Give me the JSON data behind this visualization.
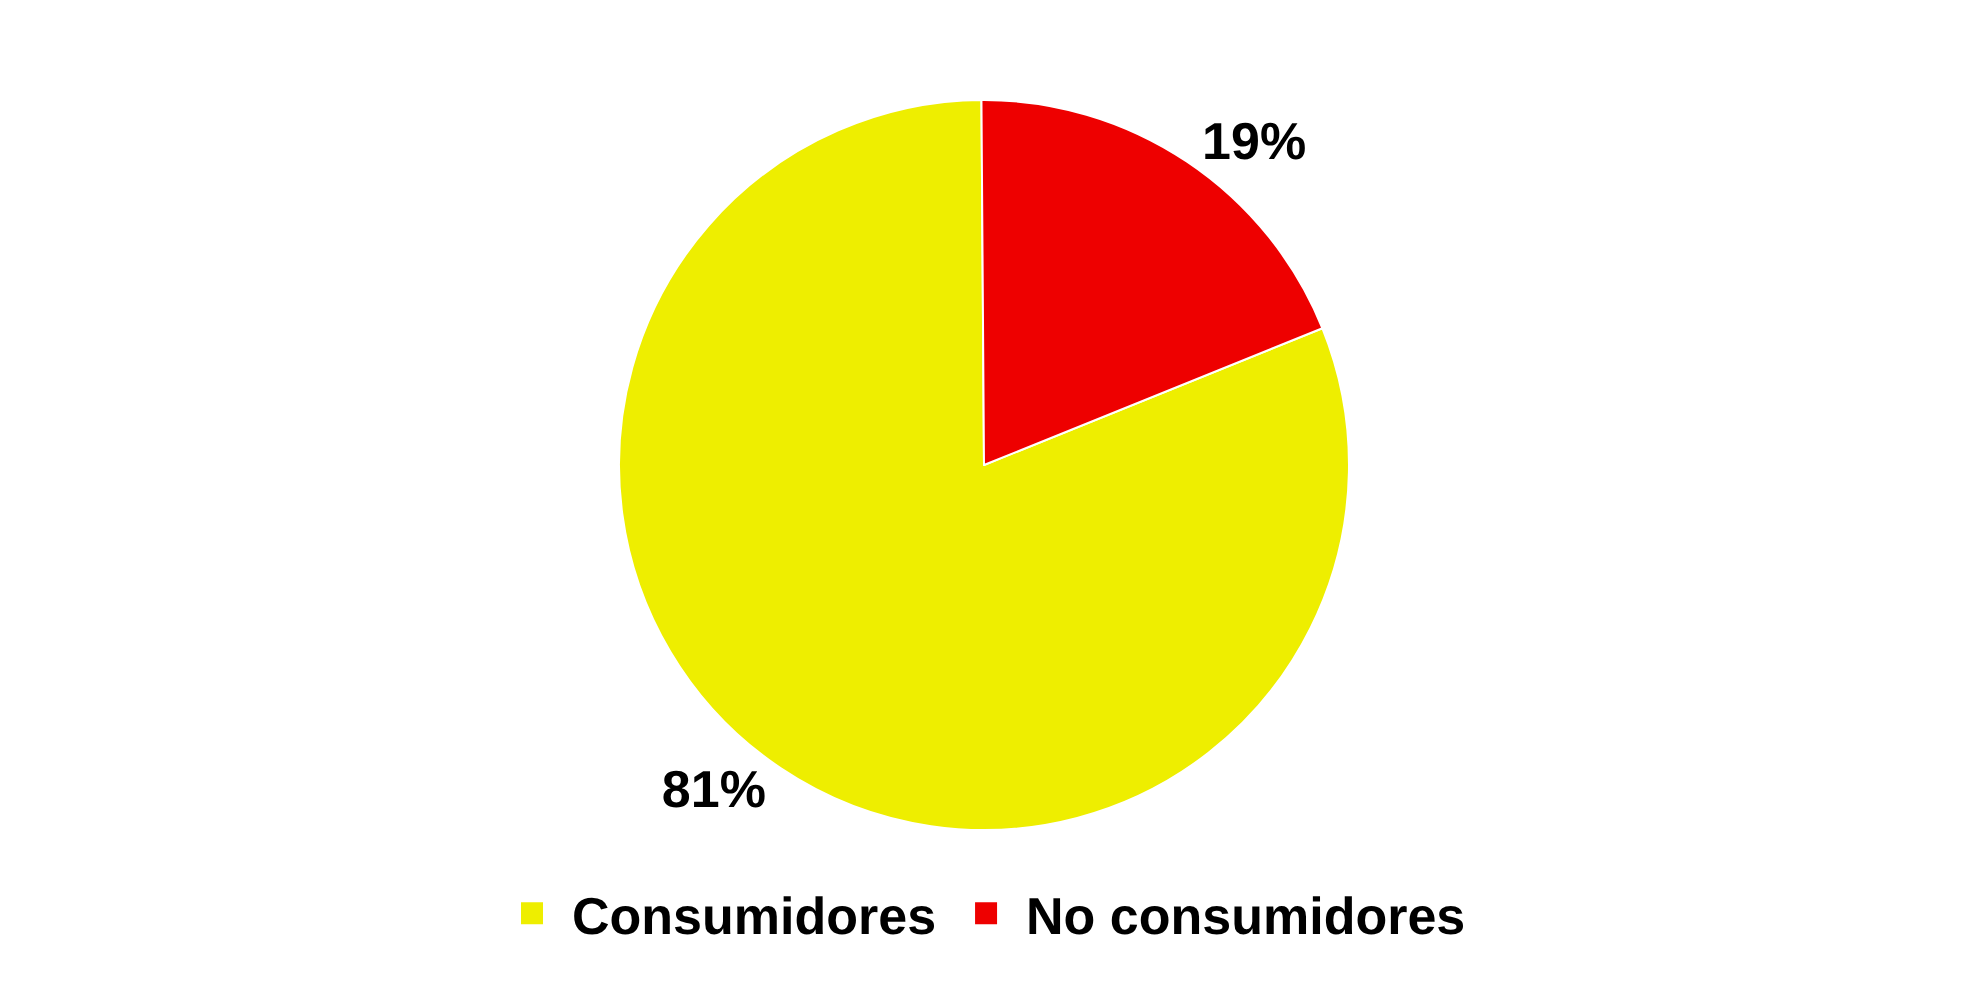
{
  "chart_data": {
    "type": "pie",
    "categories": [
      "Consumidores",
      "No consumidores"
    ],
    "values": [
      81,
      19
    ],
    "colors": [
      "#eeee00",
      "#ee0000"
    ],
    "value_labels": [
      "81%",
      "19%"
    ],
    "legend": "bottom"
  }
}
